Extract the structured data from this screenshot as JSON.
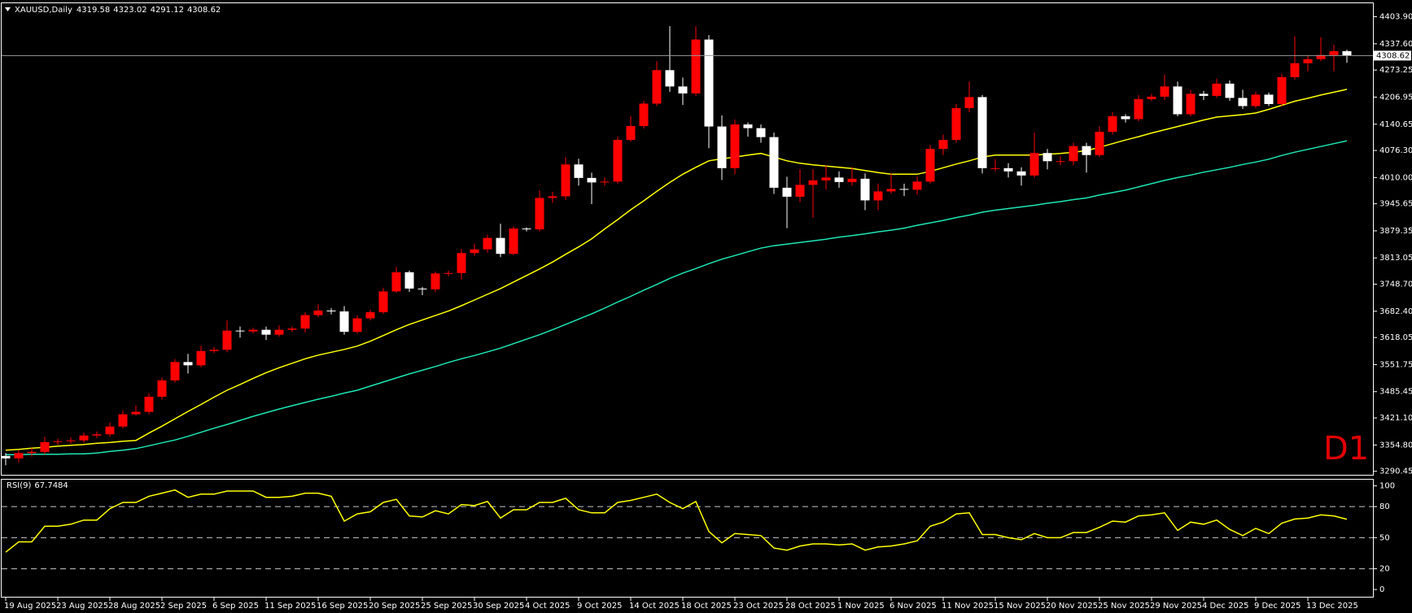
{
  "chart_data": [
    {
      "type": "candlestick",
      "title": "XAUUSD,Daily",
      "label": "D1",
      "categories": [
        "19 Aug 2025",
        null,
        null,
        null,
        "23 Aug 2025",
        null,
        null,
        null,
        "28 Aug 2025",
        null,
        null,
        null,
        "2 Sep 2025",
        null,
        null,
        null,
        "6 Sep 2025",
        null,
        null,
        null,
        "11 Sep 2025",
        null,
        null,
        null,
        "16 Sep 2025",
        null,
        null,
        null,
        "20 Sep 2025",
        null,
        null,
        null,
        "25 Sep 2025",
        null,
        null,
        null,
        "30 Sep 2025",
        null,
        null,
        null,
        "4 Oct 2025",
        null,
        null,
        null,
        "9 Oct 2025",
        null,
        null,
        null,
        "14 Oct 2025",
        null,
        null,
        null,
        "18 Oct 2025",
        null,
        null,
        null,
        "23 Oct 2025",
        null,
        null,
        null,
        "28 Oct 2025",
        null,
        null,
        null,
        "1 Nov 2025",
        null,
        null,
        null,
        "6 Nov 2025",
        null,
        null,
        null,
        "11 Nov 2025",
        null,
        null,
        null,
        "15 Nov 2025",
        null,
        null,
        null,
        "20 Nov 2025",
        null,
        null,
        null,
        "25 Nov 2025",
        null,
        null,
        null,
        "29 Nov 2025",
        null,
        null,
        null,
        "4 Dec 2025",
        null,
        null,
        null,
        "9 Dec 2025",
        null,
        null,
        null,
        "13 Dec 2025",
        null,
        null,
        null
      ],
      "open": [
        3328,
        3322,
        3335,
        3338,
        3362,
        3364,
        3366,
        3378,
        3381,
        3400,
        3430,
        3436,
        3473,
        3513,
        3558,
        3550,
        3585,
        3588,
        3635,
        3633,
        3637,
        3625,
        3637,
        3640,
        3673,
        3684,
        3682,
        3632,
        3665,
        3680,
        3731,
        3778,
        3738,
        3736,
        3775,
        3776,
        3825,
        3834,
        3862,
        3823,
        3885,
        3883,
        3960,
        3964,
        4042,
        4009,
        3998,
        4000,
        4102,
        4136,
        4191,
        4273,
        4233,
        4216,
        4348,
        4135,
        4033,
        4140,
        4131,
        4109,
        3985,
        3963,
        3992,
        4003,
        4010,
        3999,
        4007,
        3954,
        3976,
        3982,
        3980,
        4000,
        4080,
        4102,
        4180,
        4207,
        4033,
        4033,
        4025,
        4015,
        4070,
        4050,
        4050,
        4087,
        4065,
        4122,
        4160,
        4153,
        4202,
        4208,
        4233,
        4165,
        4215,
        4210,
        4240,
        4205,
        4185,
        4213,
        4190,
        4256,
        4290,
        4300,
        4310,
        4319.58
      ],
      "high": [
        3335,
        3342,
        3348,
        3375,
        3370,
        3374,
        3385,
        3388,
        3410,
        3440,
        3452,
        3482,
        3520,
        3565,
        3578,
        3598,
        3595,
        3660,
        3645,
        3642,
        3645,
        3648,
        3645,
        3680,
        3700,
        3690,
        3695,
        3672,
        3686,
        3740,
        3791,
        3782,
        3742,
        3780,
        3782,
        3835,
        3848,
        3870,
        3897,
        3890,
        3888,
        3978,
        3975,
        4060,
        4056,
        4022,
        4010,
        4110,
        4160,
        4198,
        4295,
        4381,
        4255,
        4381,
        4359,
        4162,
        4152,
        4145,
        4140,
        4120,
        4012,
        4030,
        4030,
        4040,
        4025,
        4035,
        4020,
        3995,
        4020,
        3995,
        4012,
        4090,
        4115,
        4190,
        4245,
        4212,
        4055,
        4045,
        4035,
        4120,
        4080,
        4062,
        4095,
        4095,
        4135,
        4170,
        4165,
        4212,
        4215,
        4262,
        4245,
        4225,
        4222,
        4252,
        4248,
        4225,
        4220,
        4218,
        4264,
        4356,
        4310,
        4354,
        4335,
        4323.02
      ],
      "low": [
        3305,
        3312,
        3326,
        3332,
        3355,
        3358,
        3360,
        3372,
        3375,
        3395,
        3428,
        3430,
        3466,
        3508,
        3530,
        3545,
        3580,
        3582,
        3618,
        3628,
        3612,
        3620,
        3632,
        3630,
        3668,
        3675,
        3625,
        3628,
        3660,
        3676,
        3728,
        3730,
        3722,
        3730,
        3768,
        3760,
        3818,
        3826,
        3815,
        3820,
        3878,
        3878,
        3948,
        3955,
        3990,
        3945,
        3990,
        3995,
        4098,
        4130,
        4185,
        4220,
        4188,
        4210,
        4082,
        4004,
        4018,
        4110,
        4095,
        3970,
        3886,
        3950,
        3912,
        3980,
        3985,
        3990,
        3930,
        3930,
        3970,
        3965,
        3968,
        3995,
        4065,
        4095,
        4170,
        4020,
        4025,
        4010,
        3990,
        4010,
        4030,
        4040,
        4040,
        4022,
        4060,
        4115,
        4145,
        4148,
        4198,
        4200,
        4160,
        4160,
        4200,
        4205,
        4198,
        4178,
        4180,
        4185,
        4185,
        4250,
        4270,
        4295,
        4270,
        4291.12
      ],
      "close": [
        3322,
        3335,
        3338,
        3362,
        3364,
        3366,
        3378,
        3381,
        3400,
        3430,
        3436,
        3473,
        3513,
        3558,
        3550,
        3585,
        3588,
        3635,
        3633,
        3637,
        3625,
        3637,
        3640,
        3673,
        3684,
        3682,
        3632,
        3665,
        3680,
        3731,
        3778,
        3738,
        3736,
        3775,
        3776,
        3825,
        3834,
        3862,
        3823,
        3885,
        3883,
        3960,
        3964,
        4042,
        4009,
        3998,
        4000,
        4102,
        4136,
        4191,
        4273,
        4233,
        4216,
        4348,
        4135,
        4033,
        4140,
        4131,
        4109,
        3985,
        3963,
        3992,
        4003,
        4010,
        3999,
        4007,
        3954,
        3976,
        3982,
        3980,
        4000,
        4080,
        4102,
        4180,
        4207,
        4033,
        4033,
        4025,
        4015,
        4070,
        4050,
        4050,
        4087,
        4065,
        4122,
        4160,
        4153,
        4202,
        4208,
        4233,
        4165,
        4215,
        4210,
        4240,
        4205,
        4185,
        4213,
        4190,
        4256,
        4290,
        4300,
        4310,
        4319.58,
        4308.62
      ],
      "up_color": "#ff0000",
      "down_color": "#ffffff",
      "lines": [
        {
          "color": "#ffff00",
          "values": [
            3342,
            3344,
            3347,
            3349,
            3352,
            3354,
            3356,
            3359,
            3361,
            3364,
            3366,
            3384,
            3401,
            3419,
            3437,
            3454,
            3472,
            3489,
            3503,
            3518,
            3532,
            3544,
            3555,
            3566,
            3575,
            3582,
            3589,
            3597,
            3609,
            3623,
            3637,
            3650,
            3661,
            3672,
            3683,
            3696,
            3710,
            3724,
            3738,
            3754,
            3770,
            3786,
            3803,
            3822,
            3840,
            3860,
            3884,
            3907,
            3931,
            3953,
            3976,
            3998,
            4018,
            4035,
            4051,
            4056,
            4060,
            4065,
            4069,
            4060,
            4051,
            4045,
            4041,
            4038,
            4035,
            4032,
            4027,
            4022,
            4018,
            4018,
            4018,
            4025,
            4034,
            4043,
            4051,
            4060,
            4065,
            4065,
            4065,
            4065,
            4067,
            4069,
            4072,
            4076,
            4084,
            4093,
            4102,
            4110,
            4119,
            4127,
            4135,
            4143,
            4151,
            4158,
            4161,
            4164,
            4168,
            4177,
            4187,
            4197,
            4204,
            4212,
            4219,
            4226
          ]
        },
        {
          "color": "#1ee6b4",
          "values": [
            3331,
            3331,
            3332,
            3332,
            3332,
            3333,
            3333,
            3335,
            3339,
            3342,
            3346,
            3353,
            3360,
            3367,
            3376,
            3386,
            3396,
            3405,
            3415,
            3425,
            3434,
            3443,
            3451,
            3459,
            3467,
            3474,
            3482,
            3489,
            3499,
            3509,
            3519,
            3529,
            3538,
            3547,
            3557,
            3566,
            3574,
            3583,
            3592,
            3603,
            3614,
            3625,
            3637,
            3650,
            3663,
            3676,
            3690,
            3705,
            3719,
            3734,
            3748,
            3763,
            3776,
            3787,
            3799,
            3810,
            3819,
            3828,
            3837,
            3843,
            3847,
            3851,
            3855,
            3859,
            3864,
            3868,
            3872,
            3877,
            3881,
            3886,
            3893,
            3899,
            3905,
            3912,
            3918,
            3925,
            3930,
            3934,
            3938,
            3942,
            3947,
            3951,
            3956,
            3960,
            3967,
            3973,
            3979,
            3987,
            3995,
            4003,
            4010,
            4016,
            4023,
            4029,
            4035,
            4042,
            4048,
            4055,
            4064,
            4072,
            4079,
            4086,
            4093,
            4100
          ]
        }
      ],
      "ylim": [
        3283.8,
        4434.9
      ],
      "yticks": [
        {
          "value": 4403.9,
          "label": "4403.90"
        },
        {
          "value": 4337.6,
          "label": "4337.60"
        },
        4273.25,
        4206.95,
        4140.65,
        {
          "value": 4076.3,
          "label": "4076.30"
        },
        {
          "value": 4010,
          "label": "4010.00"
        },
        3945.65,
        3879.35,
        3813.05,
        {
          "value": 3748.7,
          "label": "3748.70"
        },
        {
          "value": 3682.4,
          "label": "3682.40"
        },
        3618.05,
        3551.75,
        3485.45,
        {
          "value": 3421.1,
          "label": "3421.10"
        },
        {
          "value": 3354.8,
          "label": "3354.80"
        },
        3290.45
      ],
      "grid": false
    },
    {
      "type": "line",
      "title": "RSI(9)",
      "color": "#ffff00",
      "values": [
        36,
        46,
        46,
        61,
        61,
        63,
        67,
        67,
        78,
        84,
        84,
        90,
        93,
        96,
        89,
        92,
        92,
        95,
        95,
        95,
        89,
        89,
        90,
        93,
        93,
        90,
        66,
        73,
        75,
        84,
        87,
        71,
        70,
        76,
        73,
        82,
        81,
        85,
        69,
        77,
        77,
        84,
        84,
        88,
        77,
        74,
        74,
        84,
        86,
        89,
        92,
        84,
        78,
        85,
        56,
        45,
        54,
        53,
        52,
        40,
        38,
        42,
        44,
        44,
        43,
        44,
        38,
        41,
        42,
        44,
        47,
        61,
        65,
        73,
        74,
        53,
        53,
        50,
        48,
        54,
        50,
        50,
        55,
        55,
        60,
        66,
        65,
        71,
        72,
        74,
        57,
        65,
        63,
        67,
        58,
        52,
        59,
        54,
        64,
        68,
        69,
        72,
        71,
        67.7484
      ],
      "ylim": [
        -7,
        106
      ],
      "yticks": [
        100,
        80,
        50,
        20,
        0
      ],
      "levels": [
        80,
        50,
        20
      ]
    }
  ]
}
